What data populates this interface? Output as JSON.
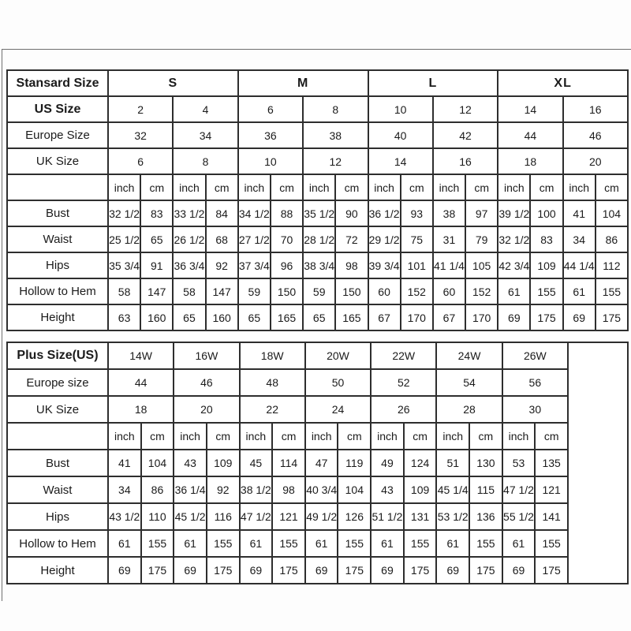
{
  "standard_table": {
    "title": "Stansard Size",
    "groups": [
      "S",
      "M",
      "L",
      "XL"
    ],
    "unit_labels": {
      "inch": "inch",
      "cm": "cm"
    },
    "size_rows": [
      {
        "label": "US Size",
        "bold": true,
        "values": [
          "2",
          "4",
          "6",
          "8",
          "10",
          "12",
          "14",
          "16"
        ]
      },
      {
        "label": "Europe Size",
        "bold": false,
        "values": [
          "32",
          "34",
          "36",
          "38",
          "40",
          "42",
          "44",
          "46"
        ]
      },
      {
        "label": "UK Size",
        "bold": false,
        "values": [
          "6",
          "8",
          "10",
          "12",
          "14",
          "16",
          "18",
          "20"
        ]
      }
    ],
    "measure_rows": [
      {
        "label": "Bust",
        "values": [
          "32 1/2",
          "83",
          "33 1/2",
          "84",
          "34 1/2",
          "88",
          "35 1/2",
          "90",
          "36 1/2",
          "93",
          "38",
          "97",
          "39 1/2",
          "100",
          "41",
          "104"
        ]
      },
      {
        "label": "Waist",
        "values": [
          "25 1/2",
          "65",
          "26 1/2",
          "68",
          "27 1/2",
          "70",
          "28 1/2",
          "72",
          "29 1/2",
          "75",
          "31",
          "79",
          "32 1/2",
          "83",
          "34",
          "86"
        ]
      },
      {
        "label": "Hips",
        "values": [
          "35 3/4",
          "91",
          "36 3/4",
          "92",
          "37 3/4",
          "96",
          "38 3/4",
          "98",
          "39 3/4",
          "101",
          "41 1/4",
          "105",
          "42 3/4",
          "109",
          "44 1/4",
          "112"
        ]
      },
      {
        "label": "Hollow to Hem",
        "values": [
          "58",
          "147",
          "58",
          "147",
          "59",
          "150",
          "59",
          "150",
          "60",
          "152",
          "60",
          "152",
          "61",
          "155",
          "61",
          "155"
        ]
      },
      {
        "label": "Height",
        "values": [
          "63",
          "160",
          "65",
          "160",
          "65",
          "165",
          "65",
          "165",
          "67",
          "170",
          "67",
          "170",
          "69",
          "175",
          "69",
          "175"
        ]
      }
    ]
  },
  "plus_table": {
    "title": "Plus Size(US)",
    "unit_labels": {
      "inch": "inch",
      "cm": "cm"
    },
    "size_rows": [
      {
        "label": "Plus Size(US)",
        "bold": true,
        "is_title": true,
        "values": [
          "14W",
          "16W",
          "18W",
          "20W",
          "22W",
          "24W",
          "26W"
        ]
      },
      {
        "label": "Europe size",
        "bold": false,
        "values": [
          "44",
          "46",
          "48",
          "50",
          "52",
          "54",
          "56"
        ]
      },
      {
        "label": "UK Size",
        "bold": false,
        "values": [
          "18",
          "20",
          "22",
          "24",
          "26",
          "28",
          "30"
        ]
      }
    ],
    "measure_rows": [
      {
        "label": "Bust",
        "values": [
          "41",
          "104",
          "43",
          "109",
          "45",
          "114",
          "47",
          "119",
          "49",
          "124",
          "51",
          "130",
          "53",
          "135"
        ]
      },
      {
        "label": "Waist",
        "values": [
          "34",
          "86",
          "36 1/4",
          "92",
          "38 1/2",
          "98",
          "40 3/4",
          "104",
          "43",
          "109",
          "45 1/4",
          "115",
          "47 1/2",
          "121"
        ]
      },
      {
        "label": "Hips",
        "values": [
          "43 1/2",
          "110",
          "45 1/2",
          "116",
          "47 1/2",
          "121",
          "49 1/2",
          "126",
          "51 1/2",
          "131",
          "53 1/2",
          "136",
          "55 1/2",
          "141"
        ]
      },
      {
        "label": "Hollow to Hem",
        "values": [
          "61",
          "155",
          "61",
          "155",
          "61",
          "155",
          "61",
          "155",
          "61",
          "155",
          "61",
          "155",
          "61",
          "155"
        ]
      },
      {
        "label": "Height",
        "values": [
          "69",
          "175",
          "69",
          "175",
          "69",
          "175",
          "69",
          "175",
          "69",
          "175",
          "69",
          "175",
          "69",
          "175"
        ]
      }
    ]
  }
}
